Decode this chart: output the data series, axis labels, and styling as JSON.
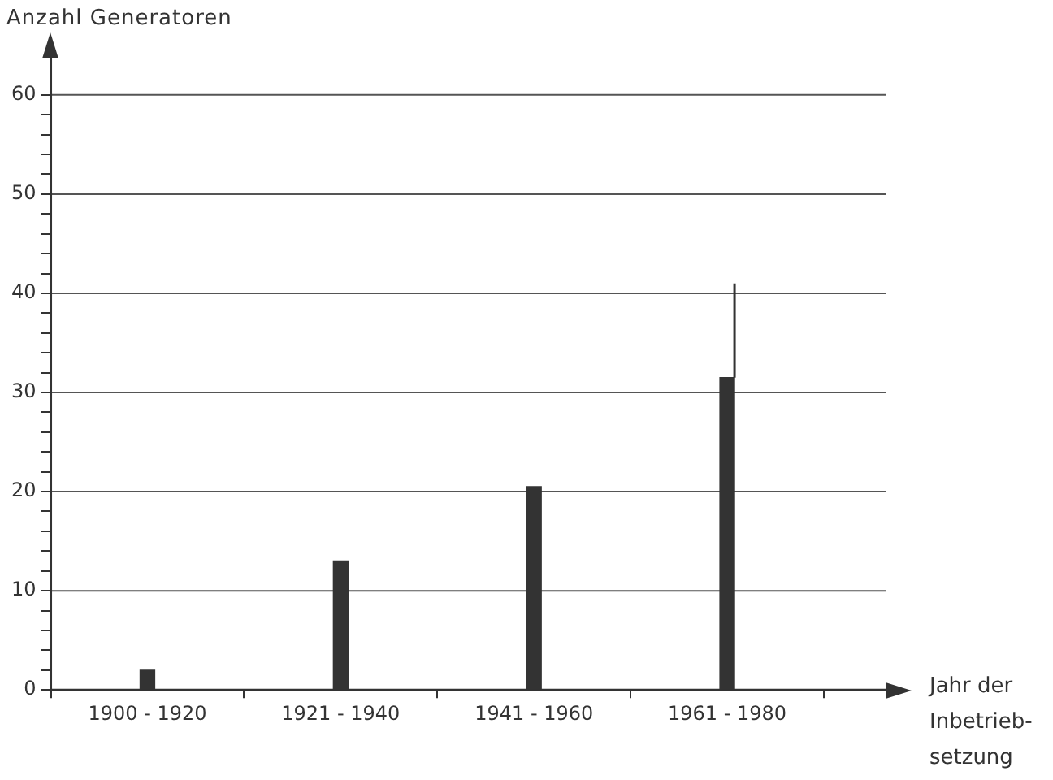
{
  "chart_data": {
    "type": "bar",
    "ylabel": "Anzahl Generatoren",
    "xlabel": "Jahr der Inbetrieb-setzung",
    "categories": [
      "1900 - 1920",
      "1921 - 1940",
      "1941 - 1960",
      "1961 - 1980"
    ],
    "values": [
      2,
      13,
      20.5,
      31.5
    ],
    "color": "#333333",
    "errors": [
      null,
      null,
      null,
      [
        31.5,
        41
      ]
    ],
    "ylim": [
      0,
      64
    ],
    "yticks": [
      0,
      {
        "value": 2,
        "label": null
      },
      {
        "value": 4,
        "label": null
      },
      {
        "value": 6,
        "label": null
      },
      {
        "value": 8,
        "label": null
      },
      10,
      {
        "value": 12,
        "label": null
      },
      {
        "value": 14,
        "label": null
      },
      {
        "value": 16,
        "label": null
      },
      {
        "value": 18,
        "label": null
      },
      20,
      {
        "value": 22,
        "label": null
      },
      {
        "value": 24,
        "label": null
      },
      {
        "value": 26,
        "label": null
      },
      {
        "value": 28,
        "label": null
      },
      30,
      {
        "value": 32,
        "label": null
      },
      {
        "value": 34,
        "label": null
      },
      {
        "value": 36,
        "label": null
      },
      {
        "value": 38,
        "label": null
      },
      40,
      {
        "value": 42,
        "label": null
      },
      {
        "value": 44,
        "label": null
      },
      {
        "value": 46,
        "label": null
      },
      {
        "value": 48,
        "label": null
      },
      50,
      {
        "value": 52,
        "label": null
      },
      {
        "value": 54,
        "label": null
      },
      {
        "value": 56,
        "label": null
      },
      {
        "value": 58,
        "label": null
      },
      60
    ],
    "grid": "y",
    "legend": false
  }
}
